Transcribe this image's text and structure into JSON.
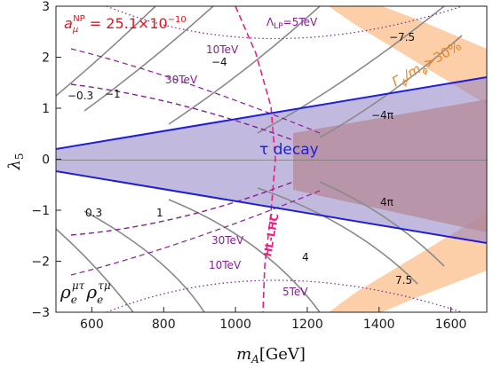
{
  "chart_data": {
    "type": "contour",
    "title": "",
    "xlabel_var": "m",
    "xlabel_sub": "A",
    "xlabel_unit": "[GeV]",
    "ylabel_var": "λ",
    "ylabel_sub": "5",
    "xlim": [
      500,
      1700
    ],
    "ylim": [
      -3,
      3
    ],
    "xticks": [
      600,
      800,
      1000,
      1200,
      1400,
      1600
    ],
    "yticks": [
      -3,
      -2,
      -1,
      0,
      1,
      2,
      3
    ],
    "grid": false,
    "annotations": {
      "anp_sym": "a",
      "anp_sub": "μ",
      "anp_sup": "NP",
      "anp_value": " = 25.1×10",
      "anp_exp": "−10",
      "width_text": "Γ",
      "width_sub": "ϕ",
      "width_mid": "/m",
      "width_sub2": "ϕ",
      "width_end": ">30%",
      "tau_decay": "τ decay",
      "hl_lhc": "HL-LHC",
      "coupling_sym": "ρ",
      "coupling_1_sub": "e",
      "coupling_1_sup": "μτ",
      "coupling_2_sub": "e",
      "coupling_2_sup": "τμ",
      "lambda_lp_sym": "Λ",
      "lambda_lp_sub": "LP",
      "lambda_lp_val": "=5TeV"
    },
    "contour_labels_upper": [
      "−0.3",
      "−1",
      "−4",
      "−4π",
      "−7.5"
    ],
    "contour_labels_lower": [
      "0.3",
      "1",
      "4",
      "4π",
      "7.5"
    ],
    "lp_labels_upper": [
      "10TeV",
      "30TeV"
    ],
    "lp_labels_lower": [
      "30TeV",
      "10TeV",
      "5TeV"
    ],
    "colors": {
      "tau_band": "#8f7fc4",
      "width_region": "#fcc79a",
      "overlap": "#b48a95",
      "blue_boundary": "#1f1fd6",
      "contours": "#8a8a8a",
      "lp_curves": "#8a1d98",
      "hl_lhc": "#e8217f",
      "anp_text": "#e5141b",
      "width_text": "#f0841e"
    }
  }
}
